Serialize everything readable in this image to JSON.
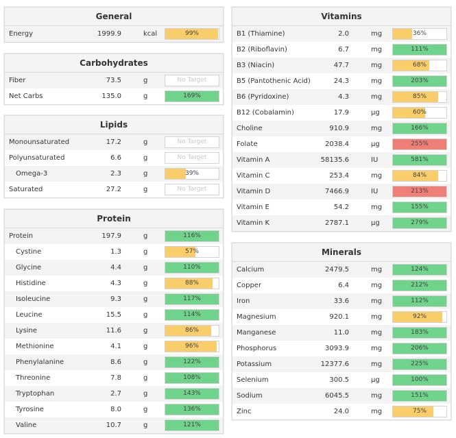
{
  "colors": {
    "yellow": "#f9cd6a",
    "green": "#6fd38c",
    "red": "#ef7f76"
  },
  "panels": [
    {
      "id": "general",
      "title": "General",
      "rows": [
        {
          "name": "Energy",
          "amount": "1999.9",
          "unit": "kcal",
          "pct": "99%",
          "value": 99,
          "color": "yellow"
        }
      ]
    },
    {
      "id": "carbohydrates",
      "title": "Carbohydrates",
      "rows": [
        {
          "name": "Fiber",
          "amount": "73.5",
          "unit": "g",
          "pct": "No Target",
          "value": null,
          "color": "none"
        },
        {
          "name": "Net Carbs",
          "amount": "135.0",
          "unit": "g",
          "pct": "169%",
          "value": 169,
          "color": "green"
        }
      ]
    },
    {
      "id": "lipids",
      "title": "Lipids",
      "rows": [
        {
          "name": "Monounsaturated",
          "amount": "17.2",
          "unit": "g",
          "pct": "No Target",
          "value": null,
          "color": "none"
        },
        {
          "name": "Polyunsaturated",
          "amount": "6.6",
          "unit": "g",
          "pct": "No Target",
          "value": null,
          "color": "none"
        },
        {
          "name": "Omega-3",
          "amount": "2.3",
          "unit": "g",
          "pct": "39%",
          "value": 39,
          "color": "yellow",
          "sub": true
        },
        {
          "name": "Saturated",
          "amount": "27.2",
          "unit": "g",
          "pct": "No Target",
          "value": null,
          "color": "none"
        }
      ]
    },
    {
      "id": "protein",
      "title": "Protein",
      "rows": [
        {
          "name": "Protein",
          "amount": "197.9",
          "unit": "g",
          "pct": "116%",
          "value": 116,
          "color": "green"
        },
        {
          "name": "Cystine",
          "amount": "1.3",
          "unit": "g",
          "pct": "57%",
          "value": 57,
          "color": "yellow",
          "sub": true
        },
        {
          "name": "Glycine",
          "amount": "4.4",
          "unit": "g",
          "pct": "110%",
          "value": 110,
          "color": "green",
          "sub": true
        },
        {
          "name": "Histidine",
          "amount": "4.3",
          "unit": "g",
          "pct": "88%",
          "value": 88,
          "color": "yellow",
          "sub": true
        },
        {
          "name": "Isoleucine",
          "amount": "9.3",
          "unit": "g",
          "pct": "117%",
          "value": 117,
          "color": "green",
          "sub": true
        },
        {
          "name": "Leucine",
          "amount": "15.5",
          "unit": "g",
          "pct": "114%",
          "value": 114,
          "color": "green",
          "sub": true
        },
        {
          "name": "Lysine",
          "amount": "11.6",
          "unit": "g",
          "pct": "86%",
          "value": 86,
          "color": "yellow",
          "sub": true
        },
        {
          "name": "Methionine",
          "amount": "4.1",
          "unit": "g",
          "pct": "96%",
          "value": 96,
          "color": "yellow",
          "sub": true
        },
        {
          "name": "Phenylalanine",
          "amount": "8.6",
          "unit": "g",
          "pct": "122%",
          "value": 122,
          "color": "green",
          "sub": true
        },
        {
          "name": "Threonine",
          "amount": "7.8",
          "unit": "g",
          "pct": "108%",
          "value": 108,
          "color": "green",
          "sub": true
        },
        {
          "name": "Tryptophan",
          "amount": "2.7",
          "unit": "g",
          "pct": "143%",
          "value": 143,
          "color": "green",
          "sub": true
        },
        {
          "name": "Tyrosine",
          "amount": "8.0",
          "unit": "g",
          "pct": "136%",
          "value": 136,
          "color": "green",
          "sub": true
        },
        {
          "name": "Valine",
          "amount": "10.7",
          "unit": "g",
          "pct": "121%",
          "value": 121,
          "color": "green",
          "sub": true
        }
      ]
    },
    {
      "id": "vitamins",
      "title": "Vitamins",
      "rows": [
        {
          "name": "B1 (Thiamine)",
          "amount": "2.0",
          "unit": "mg",
          "pct": "36%",
          "value": 36,
          "color": "yellow"
        },
        {
          "name": "B2 (Riboflavin)",
          "amount": "6.7",
          "unit": "mg",
          "pct": "111%",
          "value": 111,
          "color": "green"
        },
        {
          "name": "B3 (Niacin)",
          "amount": "47.7",
          "unit": "mg",
          "pct": "68%",
          "value": 68,
          "color": "yellow"
        },
        {
          "name": "B5 (Pantothenic Acid)",
          "amount": "24.3",
          "unit": "mg",
          "pct": "203%",
          "value": 203,
          "color": "green"
        },
        {
          "name": "B6 (Pyridoxine)",
          "amount": "4.3",
          "unit": "mg",
          "pct": "85%",
          "value": 85,
          "color": "yellow"
        },
        {
          "name": "B12 (Cobalamin)",
          "amount": "17.9",
          "unit": "µg",
          "pct": "60%",
          "value": 60,
          "color": "yellow"
        },
        {
          "name": "Choline",
          "amount": "910.9",
          "unit": "mg",
          "pct": "166%",
          "value": 166,
          "color": "green"
        },
        {
          "name": "Folate",
          "amount": "2038.4",
          "unit": "µg",
          "pct": "255%",
          "value": 255,
          "color": "red"
        },
        {
          "name": "Vitamin A",
          "amount": "58135.6",
          "unit": "IU",
          "pct": "581%",
          "value": 581,
          "color": "green"
        },
        {
          "name": "Vitamin C",
          "amount": "253.4",
          "unit": "mg",
          "pct": "84%",
          "value": 84,
          "color": "yellow"
        },
        {
          "name": "Vitamin D",
          "amount": "7466.9",
          "unit": "IU",
          "pct": "213%",
          "value": 213,
          "color": "red"
        },
        {
          "name": "Vitamin E",
          "amount": "54.2",
          "unit": "mg",
          "pct": "155%",
          "value": 155,
          "color": "green"
        },
        {
          "name": "Vitamin K",
          "amount": "2787.1",
          "unit": "µg",
          "pct": "279%",
          "value": 279,
          "color": "green"
        }
      ]
    },
    {
      "id": "minerals",
      "title": "Minerals",
      "rows": [
        {
          "name": "Calcium",
          "amount": "2479.5",
          "unit": "mg",
          "pct": "124%",
          "value": 124,
          "color": "green"
        },
        {
          "name": "Copper",
          "amount": "6.4",
          "unit": "mg",
          "pct": "212%",
          "value": 212,
          "color": "green"
        },
        {
          "name": "Iron",
          "amount": "33.6",
          "unit": "mg",
          "pct": "112%",
          "value": 112,
          "color": "green"
        },
        {
          "name": "Magnesium",
          "amount": "920.1",
          "unit": "mg",
          "pct": "92%",
          "value": 92,
          "color": "yellow"
        },
        {
          "name": "Manganese",
          "amount": "11.0",
          "unit": "mg",
          "pct": "183%",
          "value": 183,
          "color": "green"
        },
        {
          "name": "Phosphorus",
          "amount": "3093.9",
          "unit": "mg",
          "pct": "206%",
          "value": 206,
          "color": "green"
        },
        {
          "name": "Potassium",
          "amount": "12377.6",
          "unit": "mg",
          "pct": "225%",
          "value": 225,
          "color": "green"
        },
        {
          "name": "Selenium",
          "amount": "300.5",
          "unit": "µg",
          "pct": "100%",
          "value": 100,
          "color": "green"
        },
        {
          "name": "Sodium",
          "amount": "6045.5",
          "unit": "mg",
          "pct": "151%",
          "value": 151,
          "color": "green"
        },
        {
          "name": "Zinc",
          "amount": "24.0",
          "unit": "mg",
          "pct": "75%",
          "value": 75,
          "color": "yellow"
        }
      ]
    }
  ]
}
